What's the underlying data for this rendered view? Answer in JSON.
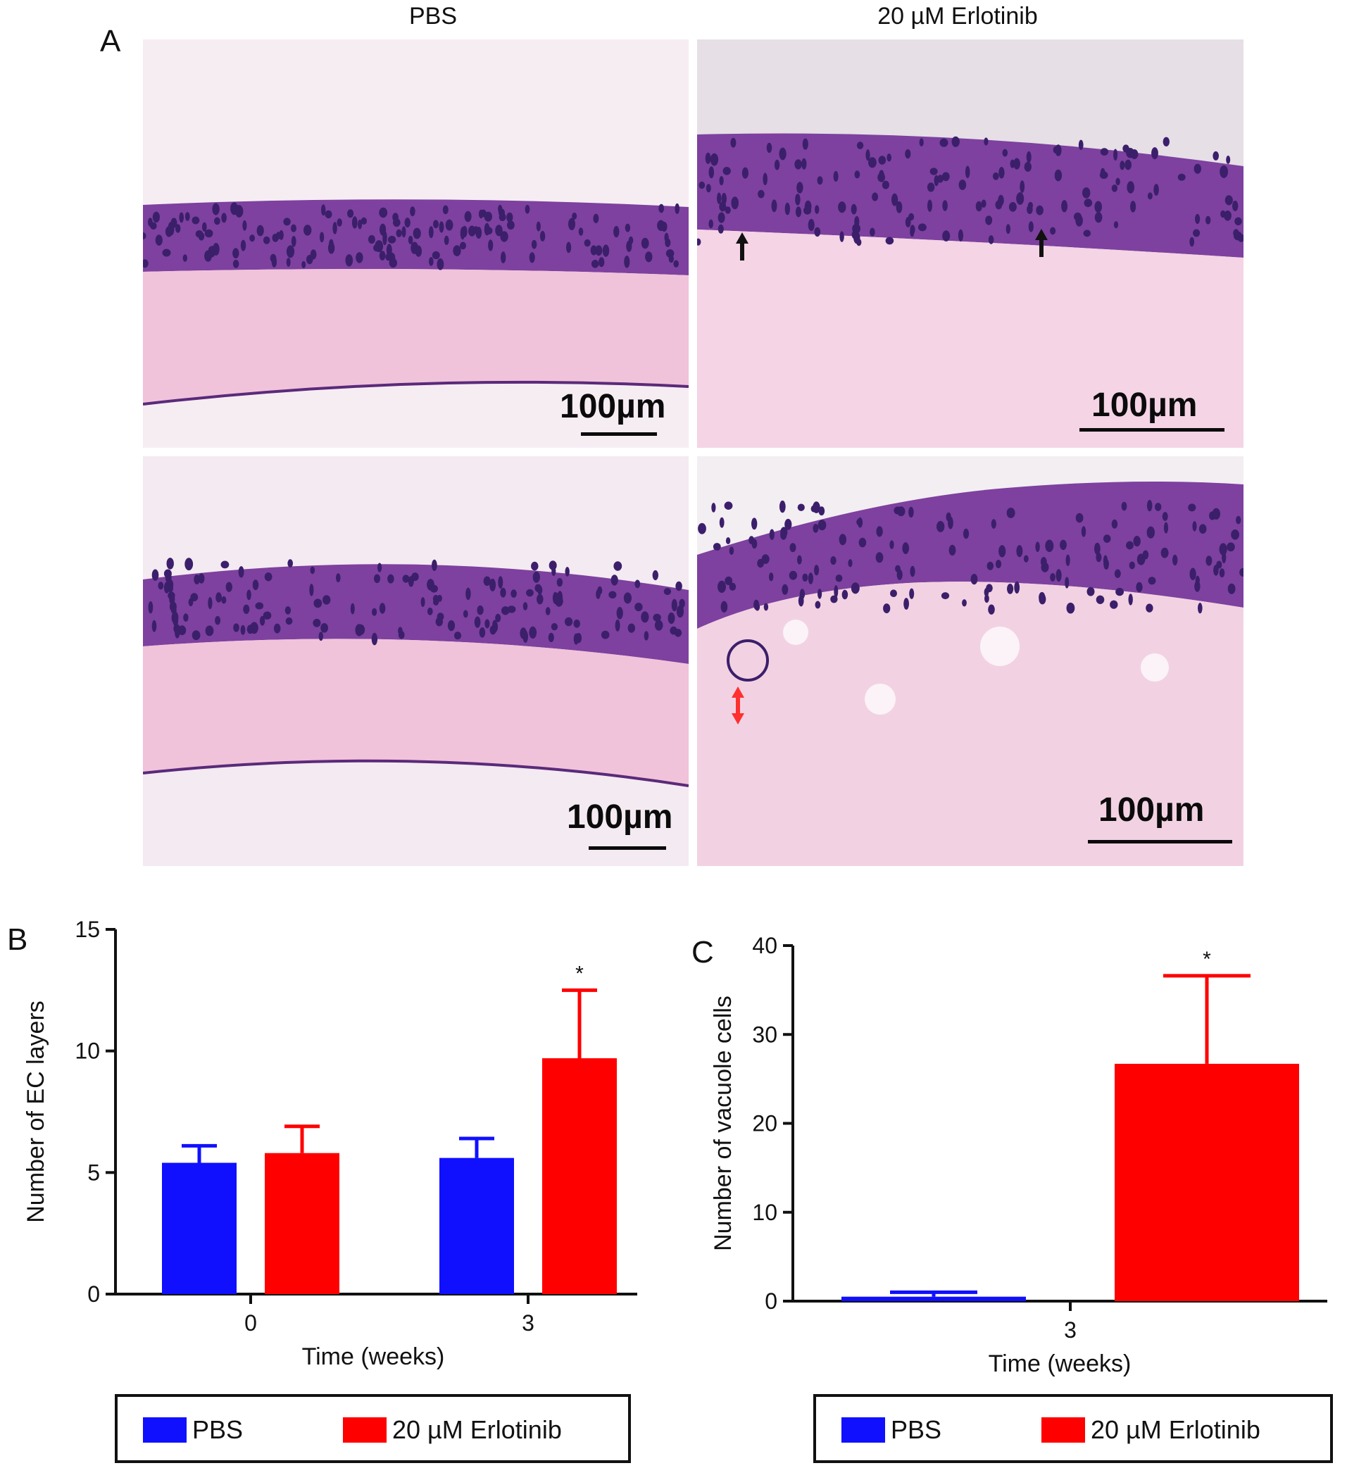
{
  "panel_a": {
    "letter": "A",
    "column_titles": [
      "PBS",
      "20 µM Erlotinib"
    ],
    "scale_label": "100µm",
    "colors": {
      "stroma": "#f0c6dc",
      "epithelium": "#7a3f9e",
      "nucleus": "#3b1f6b",
      "background": "#f5eef3"
    }
  },
  "panel_b": {
    "letter": "B",
    "legend": {
      "pbs": "PBS",
      "erlotinib": "20 µM Erlotinib"
    }
  },
  "panel_c": {
    "letter": "C",
    "legend": {
      "pbs": "PBS",
      "erlotinib": "20 µM Erlotinib"
    }
  },
  "chart_data": [
    {
      "type": "bar",
      "id": "B",
      "categories": [
        "0",
        "3"
      ],
      "series": [
        {
          "name": "PBS",
          "color": "#1010ff",
          "values": [
            5.4,
            5.6
          ],
          "error": [
            0.7,
            0.8
          ]
        },
        {
          "name": "20 µM Erlotinib",
          "color": "#ff0000",
          "values": [
            5.8,
            9.7
          ],
          "error": [
            1.1,
            2.8
          ]
        }
      ],
      "yticks": [
        "0",
        "5",
        "10",
        "15"
      ],
      "ylim": [
        0,
        15
      ],
      "xlabel": "Time (weeks)",
      "ylabel": "Number of EC layers",
      "annotations": [
        {
          "category": "3",
          "series": "20 µM Erlotinib",
          "text": "*"
        }
      ]
    },
    {
      "type": "bar",
      "id": "C",
      "categories": [
        "3"
      ],
      "series": [
        {
          "name": "PBS",
          "color": "#1010ff",
          "values": [
            0.5
          ],
          "error": [
            0.5
          ]
        },
        {
          "name": "20 µM Erlotinib",
          "color": "#ff0000",
          "values": [
            26.7
          ],
          "error": [
            9.9
          ]
        }
      ],
      "yticks": [
        "0",
        "10",
        "20",
        "30",
        "40"
      ],
      "ylim": [
        0,
        40
      ],
      "xlabel": "Time (weeks)",
      "ylabel": "Number of vacuole cells",
      "annotations": [
        {
          "category": "3",
          "series": "20 µM Erlotinib",
          "text": "*"
        }
      ]
    }
  ]
}
